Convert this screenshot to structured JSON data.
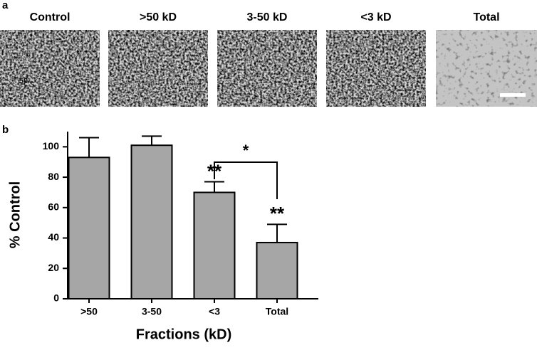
{
  "panel_a": {
    "label": "a",
    "images": [
      {
        "label": "Control",
        "annotation": "50"
      },
      {
        "label": ">50 kD"
      },
      {
        "label": "3-50 kD"
      },
      {
        "label": "<3 kD"
      },
      {
        "label": "Total"
      }
    ]
  },
  "chart_data": {
    "type": "bar",
    "panel_label": "b",
    "categories": [
      ">50",
      "3-50",
      "<3",
      "Total"
    ],
    "values": [
      93,
      101,
      70,
      37
    ],
    "errors": [
      13,
      6,
      7,
      12
    ],
    "color": "#a6a6a6",
    "significance_labels": [
      null,
      null,
      "**",
      "**"
    ],
    "comparison_label": "*",
    "x_label": "Fractions (kD)",
    "y_label": "% Control",
    "ylim": [
      0,
      110
    ],
    "yticks": [
      0,
      20,
      40,
      60,
      80,
      100
    ],
    "grid": false
  }
}
